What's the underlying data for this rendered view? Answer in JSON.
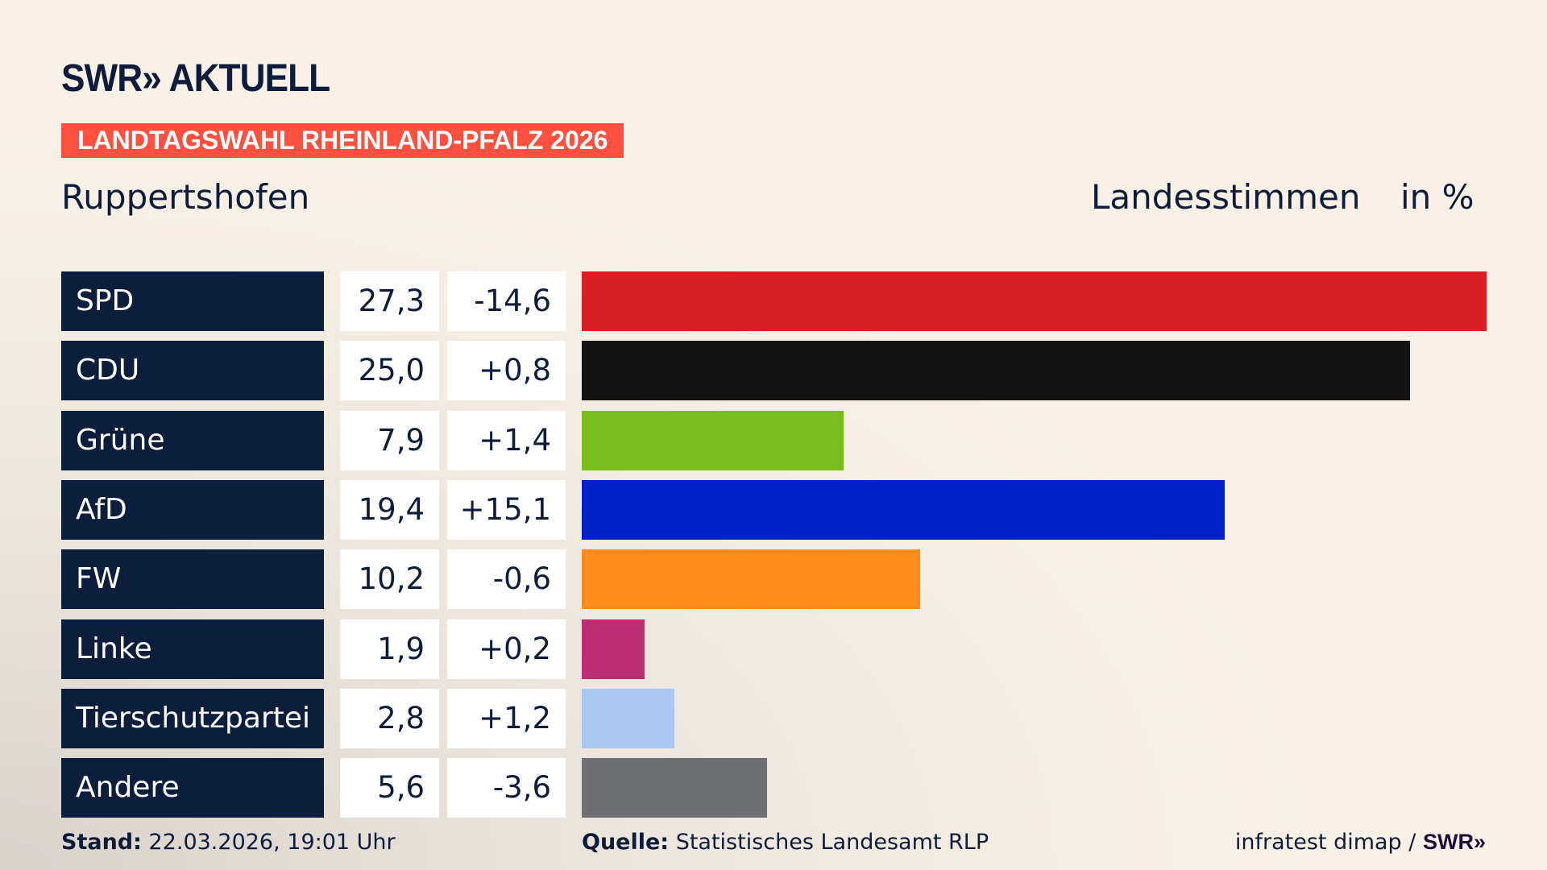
{
  "header": {
    "logo": "SWR» AKTUELL",
    "badge": "LANDTAGSWAHL RHEINLAND-PFALZ 2026",
    "region": "Ruppertshofen",
    "measure": "Landesstimmen",
    "unit": "in %"
  },
  "chart_data": {
    "type": "bar",
    "orientation": "horizontal",
    "title": "Landesstimmen",
    "unit": "in %",
    "categories": [
      "SPD",
      "CDU",
      "Grüne",
      "AfD",
      "FW",
      "Linke",
      "Tierschutzpartei",
      "Andere"
    ],
    "values": [
      27.3,
      25.0,
      7.9,
      19.4,
      10.2,
      1.9,
      2.8,
      5.6
    ],
    "value_labels": [
      "27,3",
      "25,0",
      "7,9",
      "19,4",
      "10,2",
      "1,9",
      "2,8",
      "5,6"
    ],
    "change_labels": [
      "-14,6",
      "+0,8",
      "+1,4",
      "+15,1",
      "-0,6",
      "+0,2",
      "+1,2",
      "-3,6"
    ],
    "colors": [
      "#d81f26",
      "#131313",
      "#78bc1e",
      "#0021c8",
      "#ff8c1a",
      "#bd2f72",
      "#aac8f0",
      "#6f7073"
    ],
    "xlim": [
      0,
      27.3
    ],
    "grid": false
  },
  "footer": {
    "stand_label": "Stand:",
    "stand_value": "22.03.2026, 19:01 Uhr",
    "source_label": "Quelle:",
    "source_value": "Statistisches Landesamt RLP",
    "credit": "infratest dimap /",
    "credit_logo": "SWR»"
  }
}
